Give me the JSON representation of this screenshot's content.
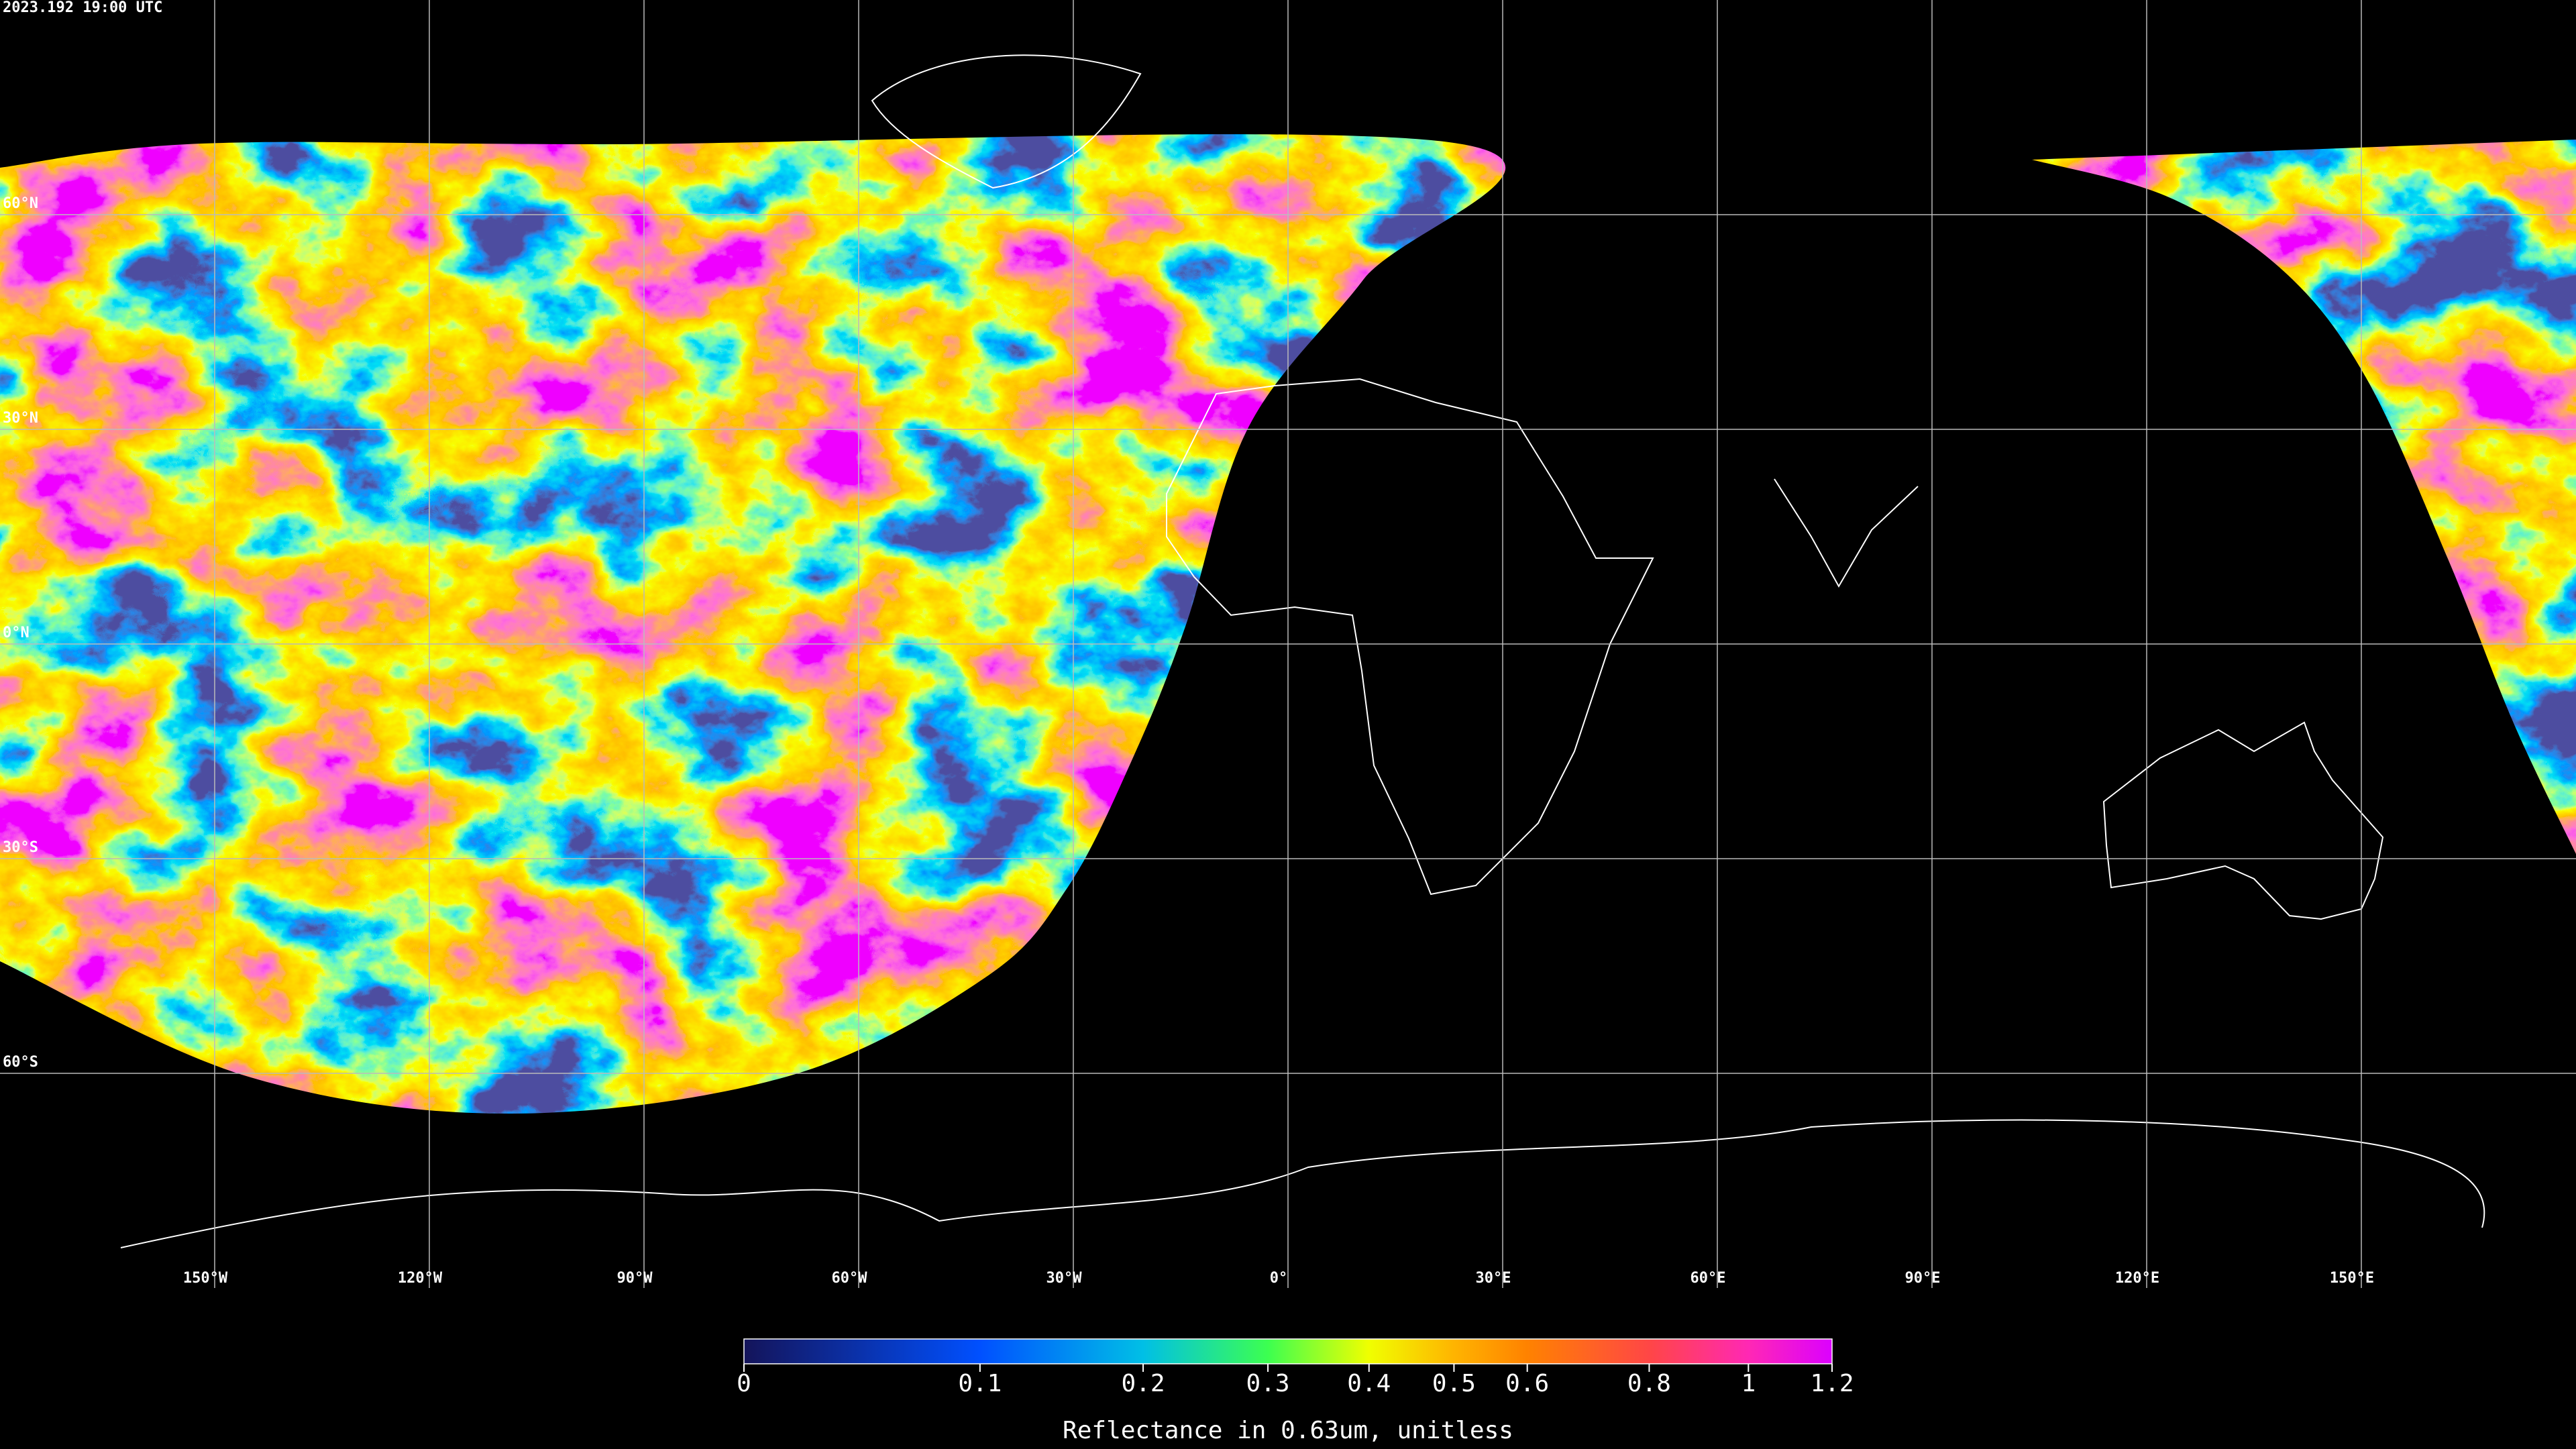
{
  "header": {
    "title": "2023.192 19:00 UTC"
  },
  "map": {
    "lonlim": [
      -180,
      180
    ],
    "latlim": [
      -90,
      90
    ],
    "lon_grid": [
      {
        "value": -150,
        "label": "150°W"
      },
      {
        "value": -120,
        "label": "120°W"
      },
      {
        "value": -90,
        "label": "90°W"
      },
      {
        "value": -60,
        "label": "60°W"
      },
      {
        "value": -30,
        "label": "30°W"
      },
      {
        "value": 0,
        "label": "0°"
      },
      {
        "value": 30,
        "label": "30°E"
      },
      {
        "value": 60,
        "label": "60°E"
      },
      {
        "value": 90,
        "label": "90°E"
      },
      {
        "value": 120,
        "label": "120°E"
      },
      {
        "value": 150,
        "label": "150°E"
      }
    ],
    "lat_grid": [
      {
        "value": 60,
        "label": "60°N"
      },
      {
        "value": 30,
        "label": "30°N"
      },
      {
        "value": 0,
        "label": "0°N"
      },
      {
        "value": -30,
        "label": "30°S"
      },
      {
        "value": -60,
        "label": "60°S"
      }
    ]
  },
  "colorbar": {
    "label": "Reflectance in 0.63um, unitless",
    "lim": [
      0,
      1.2
    ],
    "ticks": [
      0,
      0.1,
      0.2,
      0.3,
      0.4,
      0.5,
      0.6,
      0.8,
      1,
      1.2
    ],
    "tick_colors": [
      "#14145a",
      "#0050ff",
      "#00bfe6",
      "#3cff50",
      "#f0ff00",
      "#ffb400",
      "#ff8200",
      "#ff4646",
      "#ff28b4",
      "#dc00ff"
    ]
  }
}
